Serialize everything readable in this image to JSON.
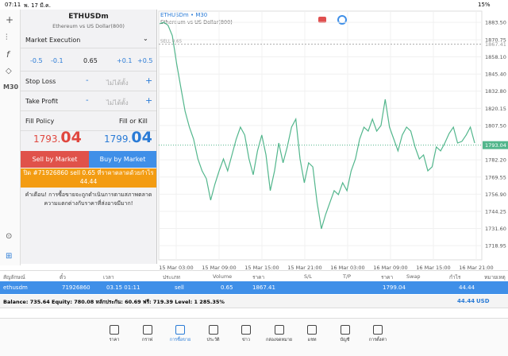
{
  "status": {
    "time": "07:11",
    "date": "พ. 17 มี.ค.",
    "battery": "15%"
  },
  "toolbar": {
    "timeframe": "M30"
  },
  "panel": {
    "symbol": "ETHUSDm",
    "description": "Ethereum vs US Dollar(800)",
    "execution": "Market Execution",
    "steps": [
      "-0.5",
      "-0.1",
      "0.65",
      "+0.1",
      "+0.5"
    ],
    "stop_loss": "Stop Loss",
    "take_profit": "Take Profit",
    "not_set": "ไม่ได้ตั้ง",
    "minus": "-",
    "plus": "+",
    "fill_policy": "Fill Policy",
    "fill_value": "Fill or Kill",
    "bid": {
      "main": "1793.",
      "big": "04"
    },
    "ask": {
      "main": "1799.",
      "big": "04"
    },
    "sell_button": "Sell by Market",
    "buy_button": "Buy by Market",
    "close_button": "ปิด #71926860 sell 0.65 ที่ราคาตลาดด้วยกำไร 44.44",
    "warning": "คำเตือน! การซื้อขายจะถูกดำเนินการตามสภาพตลาด ความแตกต่างกับราคาที่ส่งอาจมีมาก!"
  },
  "chart_data": {
    "type": "line",
    "title": "ETHUSDm • M30",
    "subtitle": "Ethereum vs US Dollar(800)",
    "color": "#52b68c",
    "grid": true,
    "sell_label": "SELL 0.65",
    "sell_price": 1867.41,
    "current_price": 1793.04,
    "ylim": [
      1708.5,
      1891.8
    ],
    "yticks": [
      {
        "value": 1883.5,
        "label": "1883.50"
      },
      1870.75,
      {
        "value": 1858.1,
        "label": "1858.10"
      },
      {
        "value": 1845.4,
        "label": "1845.40"
      },
      {
        "value": 1832.8,
        "label": "1832.80"
      },
      1820.15,
      {
        "value": 1807.5,
        "label": "1807.50"
      },
      {
        "value": 1782.2,
        "label": "1782.20"
      },
      1769.55,
      {
        "value": 1756.9,
        "label": "1756.90"
      },
      1744.25,
      {
        "value": 1731.6,
        "label": "1731.60"
      },
      1718.95
    ],
    "xticks": [
      "15 Mar 03:00",
      "15 Mar 09:00",
      "15 Mar 15:00",
      "15 Mar 21:00",
      "16 Mar 03:00",
      "16 Mar 09:00",
      "16 Mar 15:00",
      "16 Mar 21:00"
    ],
    "values": [
      1882.5,
      1883.6,
      1881.3,
      1873.7,
      1853.2,
      1835.6,
      1818.0,
      1806.3,
      1797.5,
      1782.9,
      1774.1,
      1768.3,
      1752.5,
      1764.2,
      1774.1,
      1782.9,
      1774.1,
      1785.8,
      1797.5,
      1806.3,
      1800.5,
      1782.9,
      1771.2,
      1788.8,
      1800.5,
      1785.8,
      1759.5,
      1774.1,
      1794.6,
      1780.0,
      1791.7,
      1806.3,
      1812.2,
      1782.9,
      1765.3,
      1780.0,
      1777.0,
      1750.7,
      1731.4,
      1741.9,
      1750.7,
      1759.5,
      1756.6,
      1765.3,
      1759.5,
      1774.1,
      1782.9,
      1797.5,
      1806.3,
      1803.4,
      1812.2,
      1803.4,
      1807.5,
      1826.8,
      1806.3,
      1797.5,
      1788.8,
      1800.5,
      1806.3,
      1803.4,
      1791.7,
      1782.9,
      1785.8,
      1774.1,
      1777.0,
      1791.7,
      1788.8,
      1794.6,
      1801.6,
      1806.3,
      1794.6,
      1795.8,
      1800.5,
      1806.3,
      1794.6
    ]
  },
  "table": {
    "headers": [
      "สัญลักษณ์",
      "ตั๋ว",
      "เวลา",
      "ประเภท",
      "Volume",
      "ราคา",
      "S/L",
      "T/P",
      "ราคา",
      "Swap",
      "กำไร",
      "หมายเหตุ"
    ],
    "row": {
      "symbol": "ethusdm",
      "ticket": "71926860",
      "time": "03.15 01:11",
      "type": "sell",
      "volume": "0.65",
      "open_price": "1867.41",
      "current_price": "1799.04",
      "profit": "44.44"
    },
    "balance": "Balance: 735.64 Equity: 780.08 หลักประกัน: 60.69 ฟรี: 719.39 Level: 1 285.35%",
    "total_profit": "44.44",
    "currency": "USD"
  },
  "nav": [
    "ราคา",
    "กราฟ",
    "การซื้อขาย",
    "ประวัติ",
    "ข่าว",
    "กล่องจดหมาย",
    "แชท",
    "บัญชี",
    "การตั้งค่า"
  ]
}
